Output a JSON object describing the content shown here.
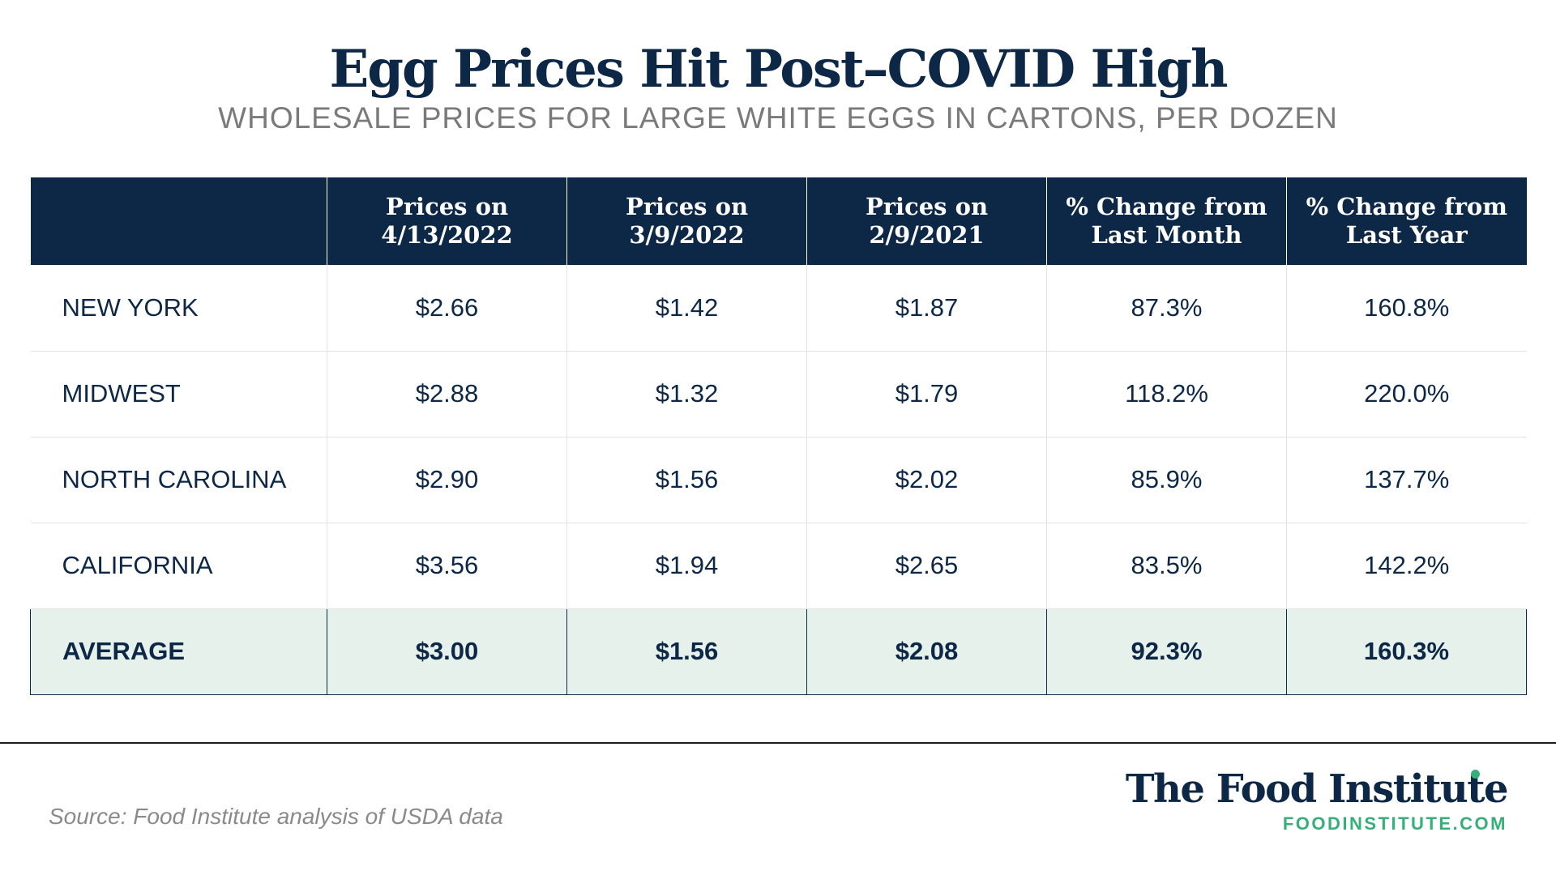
{
  "chart_data": {
    "type": "table",
    "title": "Egg Prices Hit Post–COVID High",
    "subtitle": "WHOLESALE PRICES FOR LARGE WHITE EGGS IN CARTONS, PER DOZEN",
    "columns": [
      {
        "line1": "",
        "line2": ""
      },
      {
        "line1": "Prices on",
        "line2": "4/13/2022"
      },
      {
        "line1": "Prices on",
        "line2": "3/9/2022"
      },
      {
        "line1": "Prices on",
        "line2": "2/9/2021"
      },
      {
        "line1": "% Change from",
        "line2": "Last Month"
      },
      {
        "line1": "% Change from",
        "line2": "Last Year"
      }
    ],
    "rows": [
      {
        "region": "NEW YORK",
        "cells": [
          "$2.66",
          "$1.42",
          "$1.87",
          "87.3%",
          "160.8%"
        ]
      },
      {
        "region": "MIDWEST",
        "cells": [
          "$2.88",
          "$1.32",
          "$1.79",
          "118.2%",
          "220.0%"
        ]
      },
      {
        "region": "NORTH CAROLINA",
        "cells": [
          "$2.90",
          "$1.56",
          "$2.02",
          "85.9%",
          "137.7%"
        ]
      },
      {
        "region": "CALIFORNIA",
        "cells": [
          "$3.56",
          "$1.94",
          "$2.65",
          "83.5%",
          "142.2%"
        ]
      }
    ],
    "average": {
      "region": "AVERAGE",
      "cells": [
        "$3.00",
        "$1.56",
        "$2.08",
        "92.3%",
        "160.3%"
      ]
    }
  },
  "footer": {
    "source": "Source: Food Institute analysis of USDA data",
    "brand_name": "The Food Institute",
    "brand_url": "FOODINSTITUTE.COM"
  },
  "colors": {
    "navy": "#0d2747",
    "average_row": "#e6f1eb",
    "brand_green": "#35b07a",
    "subtitle_gray": "#7a7a7a"
  }
}
